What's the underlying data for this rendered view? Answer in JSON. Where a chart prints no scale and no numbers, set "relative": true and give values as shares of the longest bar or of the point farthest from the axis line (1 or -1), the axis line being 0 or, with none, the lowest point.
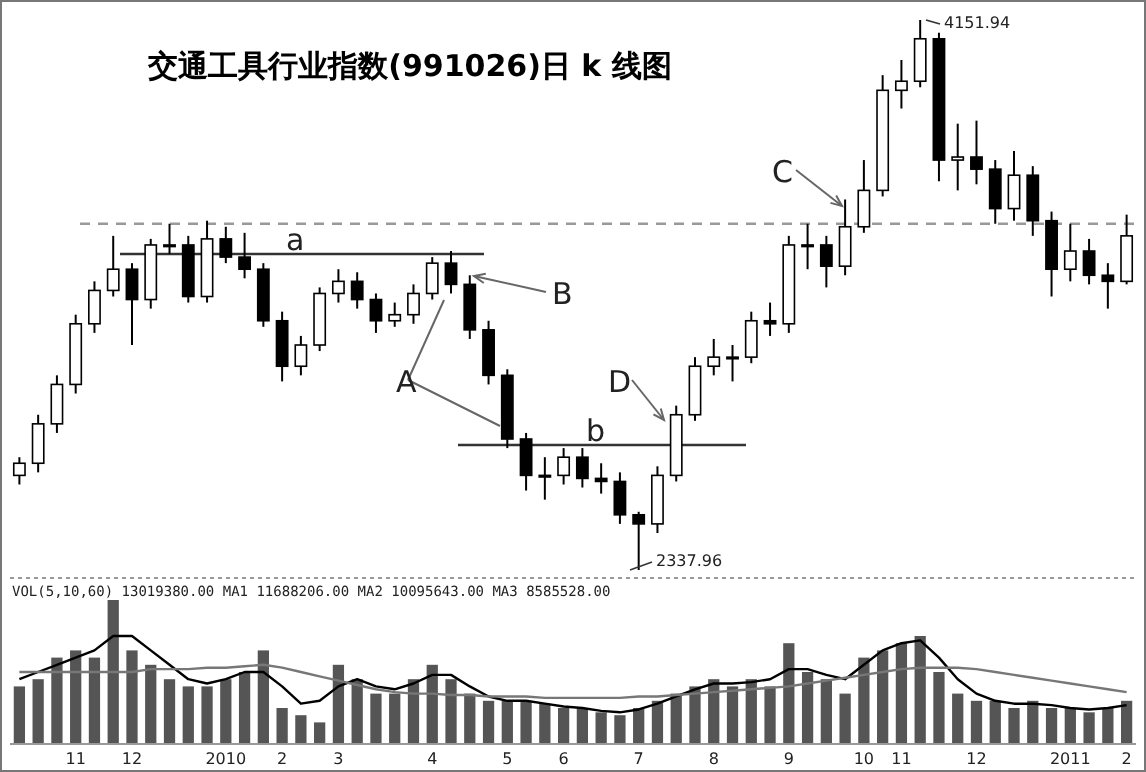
{
  "chart_data": [
    {
      "type": "candlestick",
      "title": "交通工具行业指数(991026)日 k 线图",
      "tick_labels": false,
      "color": "#000000",
      "categories": [
        null,
        null,
        null,
        null,
        null,
        null,
        null,
        null,
        null,
        null,
        null,
        null,
        null,
        null,
        null,
        null,
        null,
        null,
        null,
        null,
        null,
        null,
        null,
        null,
        null,
        null,
        null,
        null,
        null,
        null,
        null,
        null,
        null,
        null,
        null,
        null,
        null,
        null,
        null,
        null,
        null,
        null,
        null,
        null,
        null,
        null,
        null,
        null,
        null,
        null,
        null,
        null,
        null,
        null,
        null,
        null,
        null,
        null,
        null,
        null
      ],
      "ohlc": [
        [
          2650,
          2710,
          2620,
          2690
        ],
        [
          2690,
          2850,
          2660,
          2820
        ],
        [
          2820,
          2980,
          2790,
          2950
        ],
        [
          2950,
          3180,
          2920,
          3150
        ],
        [
          3150,
          3290,
          3120,
          3260
        ],
        [
          3260,
          3440,
          3240,
          3330
        ],
        [
          3330,
          3350,
          3080,
          3230
        ],
        [
          3230,
          3430,
          3200,
          3410
        ],
        [
          3410,
          3480,
          3380,
          3410
        ],
        [
          3410,
          3440,
          3220,
          3240
        ],
        [
          3240,
          3490,
          3220,
          3430
        ],
        [
          3430,
          3470,
          3350,
          3370
        ],
        [
          3370,
          3450,
          3300,
          3330
        ],
        [
          3330,
          3350,
          3140,
          3160
        ],
        [
          3160,
          3190,
          2960,
          3010
        ],
        [
          3010,
          3110,
          2980,
          3080
        ],
        [
          3080,
          3270,
          3060,
          3250
        ],
        [
          3250,
          3330,
          3220,
          3290
        ],
        [
          3290,
          3320,
          3200,
          3230
        ],
        [
          3230,
          3250,
          3120,
          3160
        ],
        [
          3160,
          3220,
          3140,
          3180
        ],
        [
          3180,
          3280,
          3150,
          3250
        ],
        [
          3250,
          3370,
          3230,
          3350
        ],
        [
          3350,
          3390,
          3250,
          3280
        ],
        [
          3280,
          3310,
          3100,
          3130
        ],
        [
          3130,
          3160,
          2950,
          2980
        ],
        [
          2980,
          3000,
          2740,
          2770
        ],
        [
          2770,
          2790,
          2600,
          2650
        ],
        [
          2650,
          2710,
          2570,
          2650
        ],
        [
          2650,
          2740,
          2620,
          2710
        ],
        [
          2710,
          2740,
          2610,
          2640
        ],
        [
          2640,
          2690,
          2590,
          2630
        ],
        [
          2630,
          2660,
          2490,
          2520
        ],
        [
          2520,
          2530,
          2337.96,
          2490
        ],
        [
          2490,
          2680,
          2460,
          2650
        ],
        [
          2650,
          2880,
          2630,
          2850
        ],
        [
          2850,
          3040,
          2830,
          3010
        ],
        [
          3010,
          3100,
          2980,
          3040
        ],
        [
          3040,
          3080,
          2960,
          3040
        ],
        [
          3040,
          3190,
          3020,
          3160
        ],
        [
          3160,
          3220,
          3110,
          3150
        ],
        [
          3150,
          3440,
          3120,
          3410
        ],
        [
          3410,
          3480,
          3330,
          3410
        ],
        [
          3410,
          3440,
          3270,
          3340
        ],
        [
          3340,
          3560,
          3310,
          3470
        ],
        [
          3470,
          3690,
          3450,
          3590
        ],
        [
          3590,
          3970,
          3570,
          3920
        ],
        [
          3920,
          4020,
          3860,
          3950
        ],
        [
          3950,
          4151.94,
          3930,
          4090
        ],
        [
          4090,
          4110,
          3620,
          3690
        ],
        [
          3690,
          3810,
          3590,
          3700
        ],
        [
          3700,
          3820,
          3610,
          3660
        ],
        [
          3660,
          3690,
          3480,
          3530
        ],
        [
          3530,
          3720,
          3490,
          3640
        ],
        [
          3640,
          3670,
          3440,
          3490
        ],
        [
          3490,
          3520,
          3240,
          3330
        ],
        [
          3330,
          3480,
          3290,
          3390
        ],
        [
          3390,
          3430,
          3280,
          3310
        ],
        [
          3310,
          3350,
          3200,
          3290
        ],
        [
          3290,
          3510,
          3280,
          3440
        ]
      ],
      "ref_lines": [
        {
          "axis": "y",
          "value": 3480,
          "line_style": "dashed",
          "color": "#999999"
        },
        {
          "axis": "y",
          "value": 3380,
          "label": "a",
          "color": "#333333"
        },
        {
          "axis": "y",
          "value": 2750,
          "label": "b",
          "color": "#333333"
        }
      ],
      "annotations": [
        "4151.94",
        "2337.96",
        "A",
        "B",
        "C",
        "D"
      ]
    },
    {
      "type": "bar",
      "relative": true,
      "title": "VOL(5,10,60)  13019380.00 MA1 11688206.00 MA2 10095643.00 MA3 8585528.00",
      "categories": [
        null,
        null,
        null,
        "11",
        null,
        null,
        "12",
        null,
        null,
        null,
        null,
        "2010",
        null,
        null,
        "2",
        null,
        null,
        "3",
        null,
        null,
        null,
        null,
        "4",
        null,
        null,
        null,
        "5",
        null,
        null,
        "6",
        null,
        null,
        null,
        "7",
        null,
        null,
        null,
        "8",
        null,
        null,
        null,
        "9",
        null,
        null,
        null,
        "10",
        null,
        "11",
        null,
        null,
        null,
        "12",
        null,
        null,
        null,
        null,
        "2011",
        null,
        null,
        "2"
      ],
      "series": [
        {
          "type": "bar",
          "color": "#555555",
          "values": [
            0.4,
            0.45,
            0.6,
            0.65,
            0.6,
            1,
            0.65,
            0.55,
            0.45,
            0.4,
            0.4,
            0.45,
            0.5,
            0.65,
            0.25,
            0.2,
            0.15,
            0.55,
            0.45,
            0.35,
            0.35,
            0.45,
            0.55,
            0.45,
            0.35,
            0.3,
            0.3,
            0.3,
            0.28,
            0.25,
            0.25,
            0.22,
            0.2,
            0.25,
            0.3,
            0.35,
            0.4,
            0.45,
            0.4,
            0.45,
            0.4,
            0.7,
            0.5,
            0.45,
            0.35,
            0.6,
            0.65,
            0.7,
            0.75,
            0.5,
            0.35,
            0.3,
            0.3,
            0.25,
            0.3,
            0.25,
            0.25,
            0.22,
            0.25,
            0.3
          ]
        },
        {
          "type": "line",
          "color": "#000000",
          "values": [
            0.45,
            0.5,
            0.55,
            0.6,
            0.65,
            0.75,
            0.75,
            0.65,
            0.55,
            0.45,
            0.42,
            0.45,
            0.5,
            0.5,
            0.4,
            0.28,
            0.3,
            0.4,
            0.45,
            0.4,
            0.38,
            0.42,
            0.48,
            0.48,
            0.4,
            0.33,
            0.3,
            0.3,
            0.28,
            0.26,
            0.25,
            0.23,
            0.22,
            0.24,
            0.28,
            0.33,
            0.38,
            0.42,
            0.42,
            0.43,
            0.45,
            0.52,
            0.52,
            0.48,
            0.45,
            0.55,
            0.65,
            0.7,
            0.72,
            0.6,
            0.45,
            0.35,
            0.3,
            0.28,
            0.28,
            0.27,
            0.25,
            0.24,
            0.25,
            0.27
          ]
        },
        {
          "type": "line",
          "color": "#777777",
          "values": [
            0.5,
            0.5,
            0.5,
            0.5,
            0.5,
            0.5,
            0.5,
            0.52,
            0.52,
            0.52,
            0.53,
            0.53,
            0.54,
            0.55,
            0.53,
            0.5,
            0.47,
            0.44,
            0.41,
            0.38,
            0.36,
            0.35,
            0.35,
            0.34,
            0.34,
            0.33,
            0.33,
            0.33,
            0.32,
            0.32,
            0.32,
            0.32,
            0.32,
            0.33,
            0.33,
            0.34,
            0.35,
            0.36,
            0.37,
            0.38,
            0.39,
            0.4,
            0.42,
            0.44,
            0.46,
            0.48,
            0.5,
            0.52,
            0.53,
            0.53,
            0.53,
            0.52,
            0.5,
            0.48,
            0.46,
            0.44,
            0.42,
            0.4,
            0.38,
            0.36
          ]
        }
      ]
    }
  ]
}
